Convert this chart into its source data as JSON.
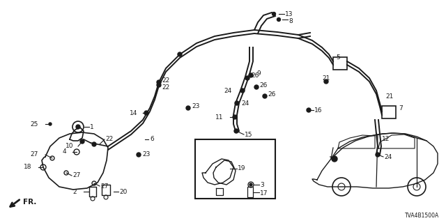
{
  "diagram_code": "TVA4B1500A",
  "background_color": "#ffffff",
  "line_color": "#1a1a1a",
  "text_color": "#1a1a1a"
}
